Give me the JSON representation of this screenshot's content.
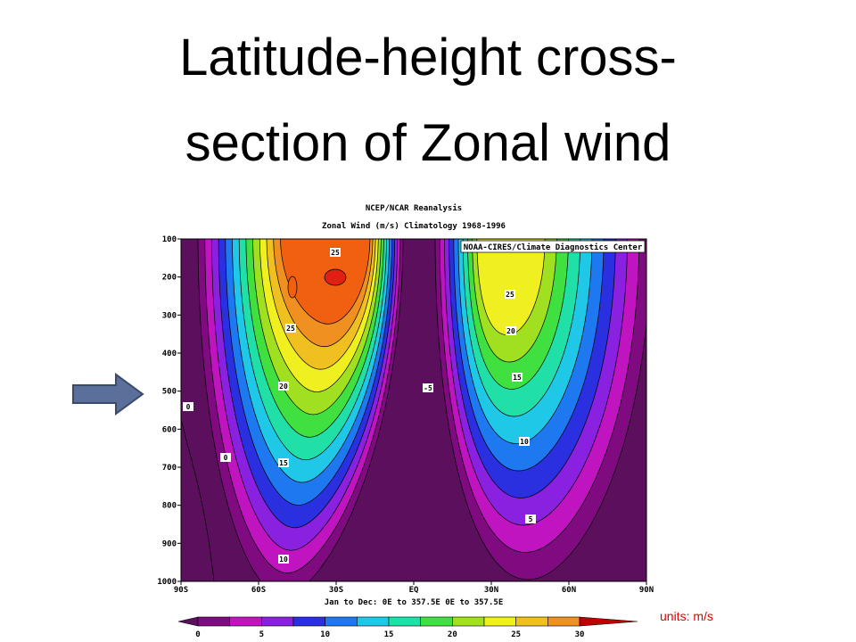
{
  "slide": {
    "title_lines": [
      "Latitude-height cross-",
      "section of Zonal wind"
    ],
    "units": "units: m/s"
  },
  "figure": {
    "header_lines": [
      "NCEP/NCAR Reanalysis",
      "Zonal Wind (m/s) Climatology 1968-1996"
    ],
    "credit": "NOAA-CIRES/Climate Diagnostics Center",
    "yticks": [
      100,
      200,
      300,
      400,
      500,
      600,
      700,
      800,
      900,
      1000
    ],
    "xticks": [
      "90S",
      "60S",
      "30S",
      "EQ",
      "30N",
      "60N",
      "90N"
    ],
    "footer": "Jan to Dec:  0E to 357.5E  0E to 357.5E",
    "contour_labels": [
      25,
      25,
      20,
      15,
      10,
      25,
      20,
      15,
      10,
      5,
      -5,
      0,
      0
    ],
    "colorbar_ticks": [
      0,
      5,
      10,
      15,
      20,
      25,
      30
    ]
  }
}
